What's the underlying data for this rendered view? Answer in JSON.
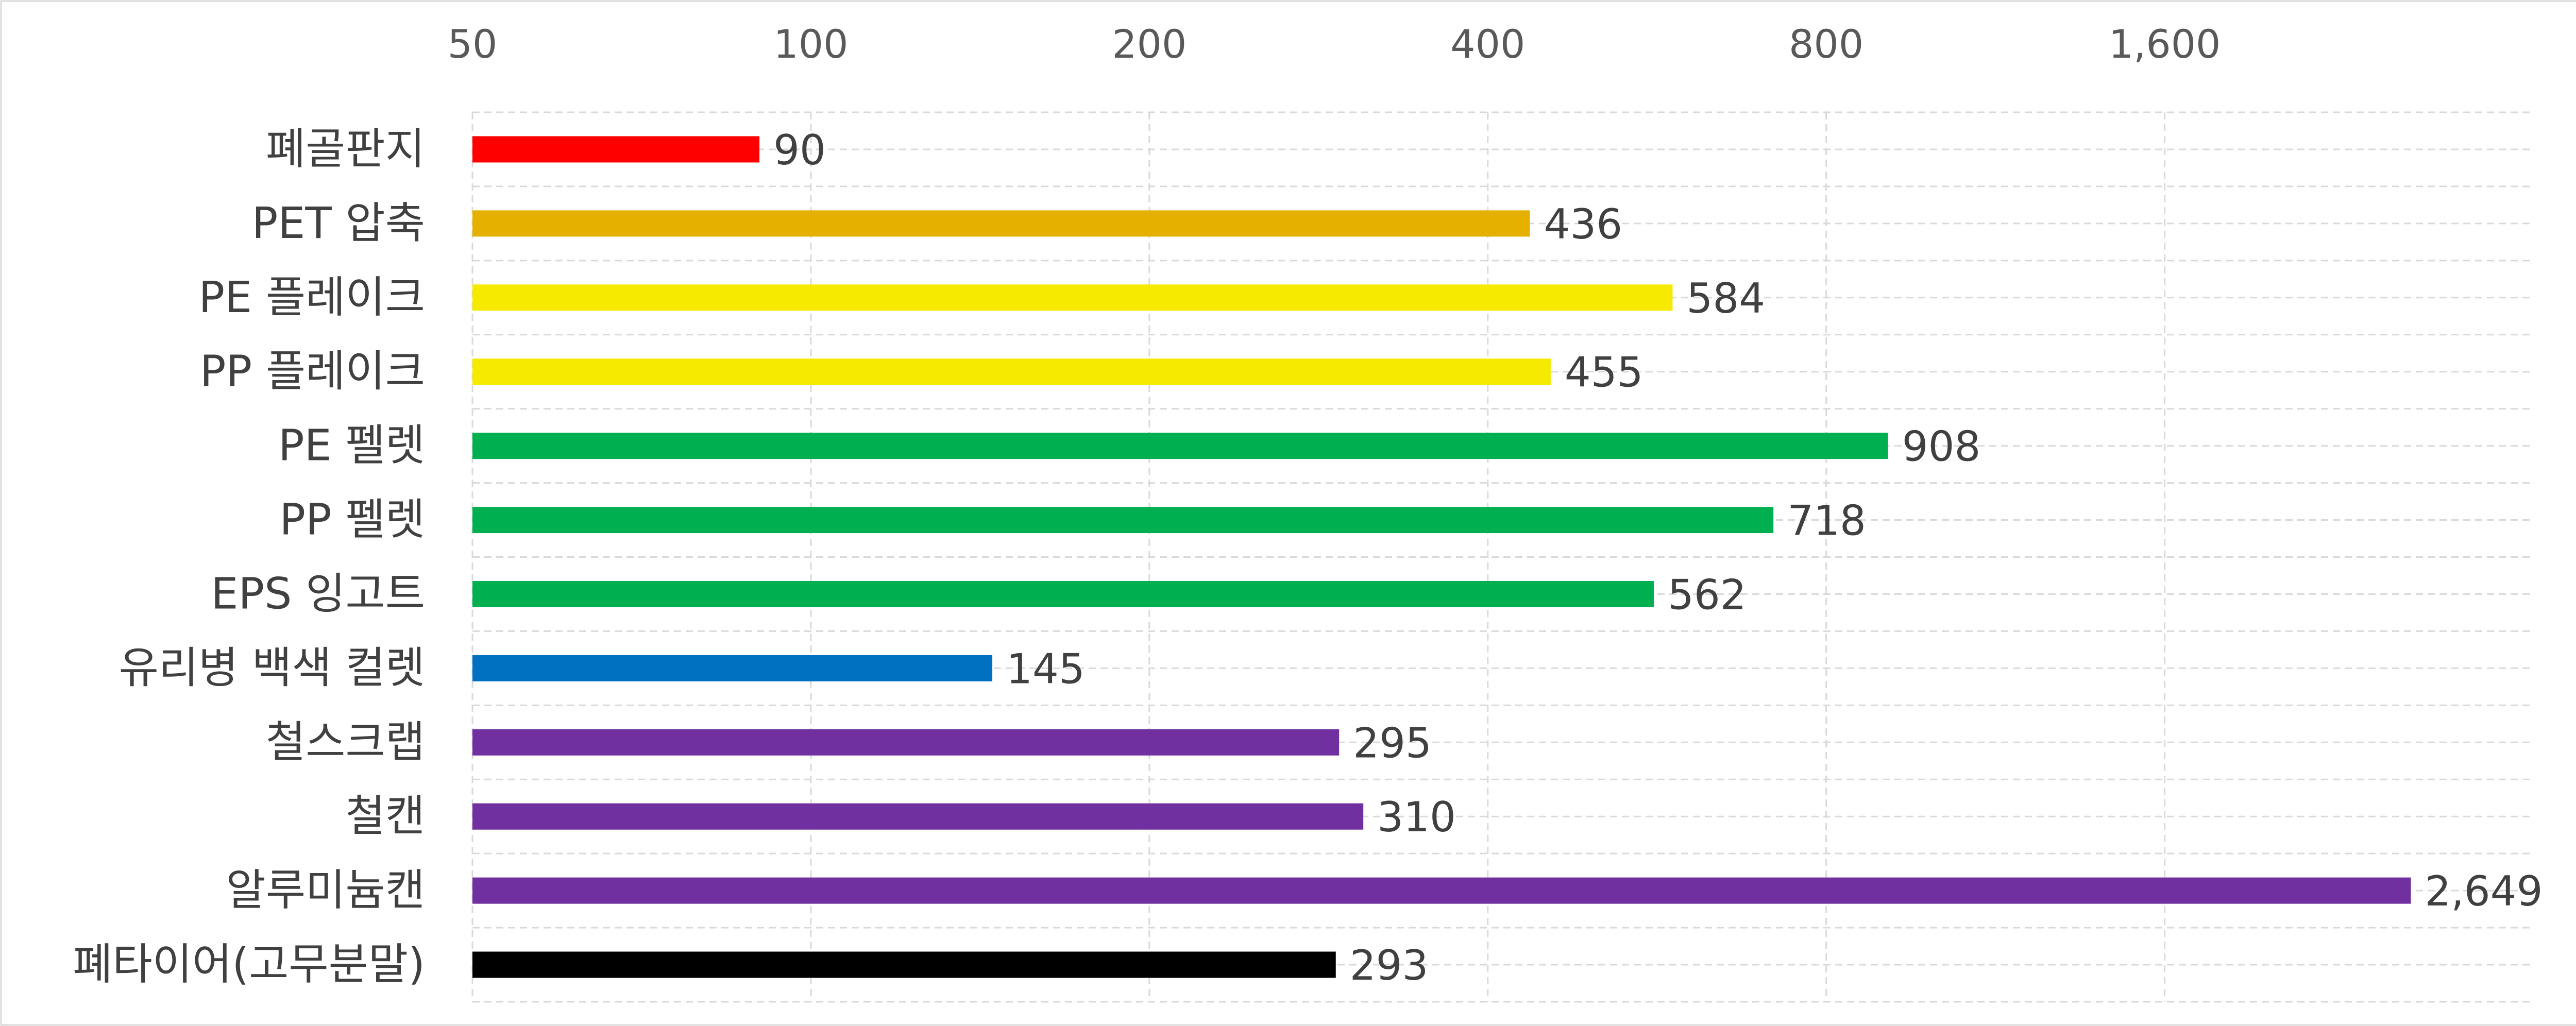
{
  "chart_data": {
    "type": "bar",
    "orientation": "horizontal",
    "x_scale": "log2",
    "xlim": [
      50,
      3400
    ],
    "x_ticks": [
      50,
      100,
      200,
      400,
      800,
      1600
    ],
    "x_tick_labels": [
      "50",
      "100",
      "200",
      "400",
      "800",
      "1,600"
    ],
    "grid": true,
    "categories": [
      "폐골판지",
      "PET 압축",
      "PE 플레이크",
      "PP 플레이크",
      "PE 펠렛",
      "PP 펠렛",
      "EPS 잉고트",
      "유리병 백색 컬렛",
      "철스크랩",
      "철캔",
      "알루미늄캔",
      "폐타이어(고무분말)"
    ],
    "values": [
      90,
      436,
      584,
      455,
      908,
      718,
      562,
      145,
      295,
      310,
      2649,
      293
    ],
    "value_labels": [
      "90",
      "436",
      "584",
      "455",
      "908",
      "718",
      "562",
      "145",
      "295",
      "310",
      "2,649",
      "293"
    ],
    "colors": [
      "#ff0000",
      "#e6b000",
      "#f5ea00",
      "#f5ea00",
      "#00b050",
      "#00b050",
      "#00b050",
      "#0070c0",
      "#7030a0",
      "#7030a0",
      "#7030a0",
      "#000000"
    ]
  }
}
